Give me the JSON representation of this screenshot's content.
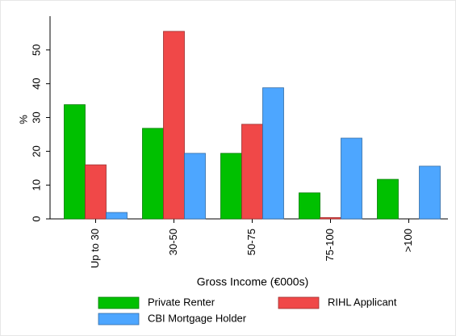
{
  "chart_data": {
    "type": "bar",
    "ylabel": "%",
    "xlabel": "Gross Income (€000s)",
    "categories": [
      "Up to 30",
      "30-50",
      "50-75",
      "75-100",
      ">100"
    ],
    "series": [
      {
        "name": "Private Renter",
        "color": "#00c000",
        "values": [
          33.8,
          26.8,
          19.4,
          7.7,
          11.7
        ]
      },
      {
        "name": "RIHL Applicant",
        "color": "#f04848",
        "values": [
          16.0,
          55.5,
          28.0,
          0.4,
          0
        ]
      },
      {
        "name": "CBI Mortgage Holder",
        "color": "#4da6ff",
        "values": [
          1.9,
          19.4,
          38.8,
          23.9,
          15.6
        ]
      }
    ],
    "ylim": [
      0,
      60
    ],
    "yticks": [
      0,
      10,
      20,
      30,
      40,
      50
    ],
    "grid": false
  }
}
